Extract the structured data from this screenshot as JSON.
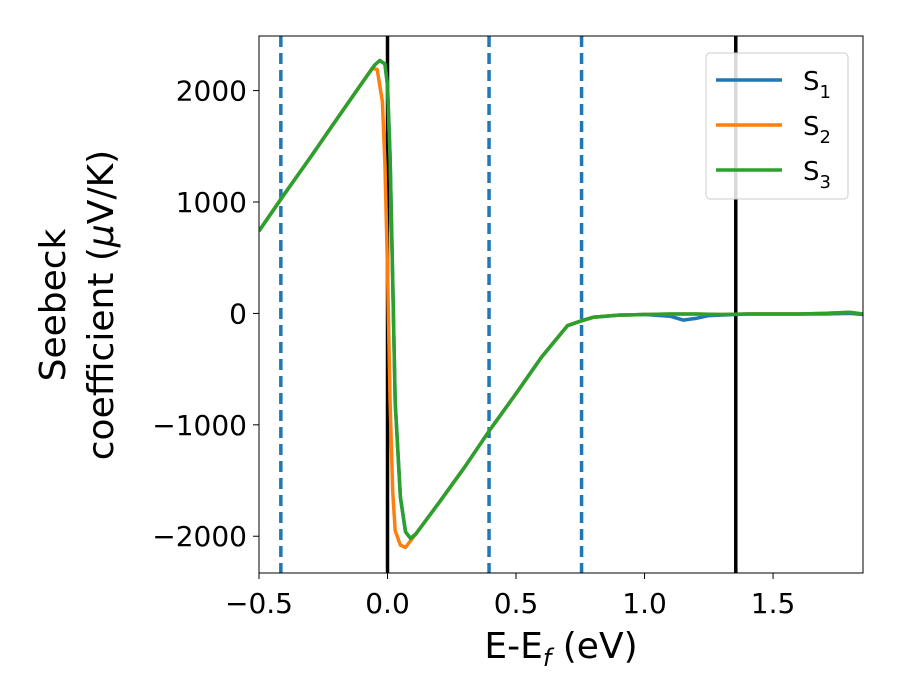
{
  "chart_data": {
    "type": "line",
    "title": "",
    "xlabel": "E-E",
    "xlabel_sub": "f",
    "xlabel_unit": " (eV)",
    "ylabel_line1": "Seebeck",
    "ylabel_line2": "coefficient  (",
    "ylabel_mu": "μ",
    "ylabel_unit": "V/K)",
    "xlim": [
      -0.5,
      1.85
    ],
    "ylim": [
      -2330,
      2490
    ],
    "xticks": [
      -0.5,
      0.0,
      0.5,
      1.0,
      1.5
    ],
    "xtick_labels": [
      "−0.5",
      "0.0",
      "0.5",
      "1.0",
      "1.5"
    ],
    "yticks": [
      2000,
      1000,
      0,
      -1000,
      -2000
    ],
    "ytick_labels": [
      "2000",
      "1000",
      "0",
      "−1000",
      "−2000"
    ],
    "grid": false,
    "legend_position": "top-right",
    "vertical_lines": [
      {
        "x": -0.415,
        "style": "dashed",
        "color": "#1f77b4"
      },
      {
        "x": 0.0,
        "style": "solid",
        "color": "#000000"
      },
      {
        "x": 0.395,
        "style": "dashed",
        "color": "#1f77b4"
      },
      {
        "x": 0.755,
        "style": "dashed",
        "color": "#1f77b4"
      },
      {
        "x": 1.355,
        "style": "solid",
        "color": "#000000"
      }
    ],
    "series": [
      {
        "name": "S",
        "sub": "1",
        "color": "#1f77b4",
        "x": [
          -0.5,
          -0.4,
          -0.3,
          -0.2,
          -0.1,
          -0.05,
          -0.03,
          -0.01,
          0.0,
          0.01,
          0.02,
          0.03,
          0.05,
          0.07,
          0.09,
          0.11,
          0.2,
          0.3,
          0.4,
          0.5,
          0.6,
          0.7,
          0.75,
          0.8,
          0.9,
          1.0,
          1.1,
          1.15,
          1.2,
          1.25,
          1.3,
          1.35,
          1.4,
          1.5,
          1.6,
          1.7,
          1.8,
          1.85
        ],
        "y": [
          740,
          1075,
          1400,
          1735,
          2065,
          2230,
          2270,
          2240,
          2050,
          1400,
          300,
          -800,
          -1650,
          -1960,
          -2020,
          -1980,
          -1700,
          -1380,
          -1040,
          -720,
          -390,
          -110,
          -70,
          -35,
          -15,
          -10,
          -25,
          -60,
          -45,
          -20,
          -15,
          -10,
          -5,
          -5,
          -5,
          -5,
          0,
          -10
        ]
      },
      {
        "name": "S",
        "sub": "2",
        "color": "#ff7f0e",
        "x": [
          -0.5,
          -0.4,
          -0.3,
          -0.2,
          -0.1,
          -0.06,
          -0.04,
          -0.02,
          -0.01,
          0.0,
          0.01,
          0.02,
          0.03,
          0.05,
          0.07,
          0.09,
          0.11,
          0.2,
          0.3,
          0.4,
          0.5,
          0.6,
          0.7,
          0.75,
          0.8,
          0.9,
          1.0,
          1.1,
          1.2,
          1.3,
          1.4,
          1.5,
          1.6,
          1.7,
          1.8,
          1.85
        ],
        "y": [
          740,
          1075,
          1400,
          1735,
          2065,
          2200,
          2190,
          1900,
          1350,
          400,
          -800,
          -1600,
          -1950,
          -2080,
          -2100,
          -2040,
          -1980,
          -1700,
          -1380,
          -1040,
          -720,
          -390,
          -110,
          -70,
          -35,
          -15,
          -10,
          -5,
          -5,
          -10,
          -5,
          -5,
          -5,
          0,
          10,
          -5
        ]
      },
      {
        "name": "S",
        "sub": "3",
        "color": "#2ca02c",
        "x": [
          -0.5,
          -0.4,
          -0.3,
          -0.2,
          -0.1,
          -0.05,
          -0.03,
          -0.01,
          0.0,
          0.01,
          0.02,
          0.03,
          0.05,
          0.07,
          0.09,
          0.11,
          0.2,
          0.3,
          0.4,
          0.5,
          0.6,
          0.7,
          0.75,
          0.8,
          0.9,
          1.0,
          1.1,
          1.2,
          1.3,
          1.4,
          1.5,
          1.6,
          1.7,
          1.8,
          1.85
        ],
        "y": [
          740,
          1075,
          1400,
          1735,
          2065,
          2230,
          2270,
          2240,
          2050,
          1400,
          300,
          -800,
          -1650,
          -1960,
          -2020,
          -1980,
          -1700,
          -1380,
          -1040,
          -720,
          -390,
          -110,
          -70,
          -35,
          -15,
          -10,
          -5,
          -5,
          -10,
          -5,
          -5,
          -5,
          0,
          10,
          -5
        ]
      }
    ]
  }
}
